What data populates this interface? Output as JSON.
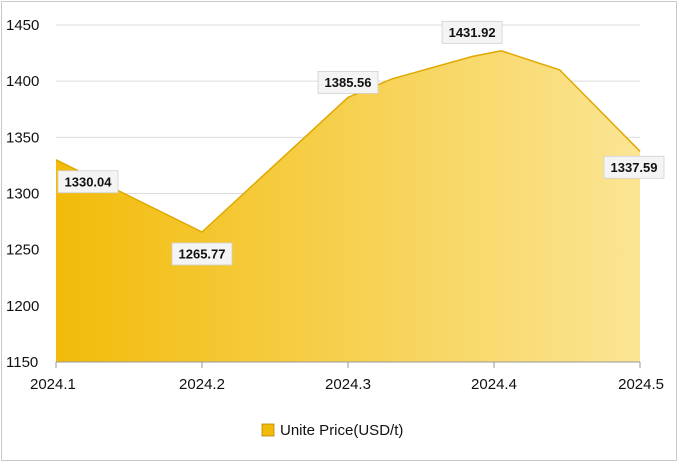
{
  "chart_data": {
    "type": "area",
    "categories": [
      "2024.1",
      "2024.2",
      "2024.3",
      "2024.4",
      "2024.5"
    ],
    "x": [
      1,
      2,
      3,
      4,
      5
    ],
    "series": [
      {
        "name": "Unite Price(USD/t)",
        "points": [
          {
            "x": 1,
            "y": 1330.04
          },
          {
            "x": 2,
            "y": 1265.77
          },
          {
            "x": 3,
            "y": 1385.56
          },
          {
            "x": 3.3,
            "y": 1402
          },
          {
            "x": 3.85,
            "y": 1422
          },
          {
            "x": 4.05,
            "y": 1427
          },
          {
            "x": 4.45,
            "y": 1410
          },
          {
            "x": 5,
            "y": 1337.59
          }
        ],
        "labels": [
          {
            "x": 1,
            "y": 1330.04,
            "text": "1330.04"
          },
          {
            "x": 2,
            "y": 1265.77,
            "text": "1265.77"
          },
          {
            "x": 3,
            "y": 1385.56,
            "text": "1385.56"
          },
          {
            "x": 3.85,
            "y": 1431.92,
            "text": "1431.92"
          },
          {
            "x": 5,
            "y": 1337.59,
            "text": "1337.59"
          }
        ]
      }
    ],
    "ylim": [
      1150,
      1450
    ],
    "yticks": [
      1150,
      1200,
      1250,
      1300,
      1350,
      1400,
      1450
    ],
    "title": "",
    "xlabel": "",
    "ylabel": "",
    "grid": true,
    "legend_position": "bottom",
    "colors": {
      "fill_start": "#f2bb0a",
      "fill_end": "#fbe594",
      "line": "#e0a800",
      "grid": "#dcdcdc",
      "axis": "#9a9a9a",
      "label_box": "#f4f4f4"
    }
  },
  "legend": {
    "label": "Unite Price(USD/t)",
    "icon": "legend-swatch-icon"
  }
}
